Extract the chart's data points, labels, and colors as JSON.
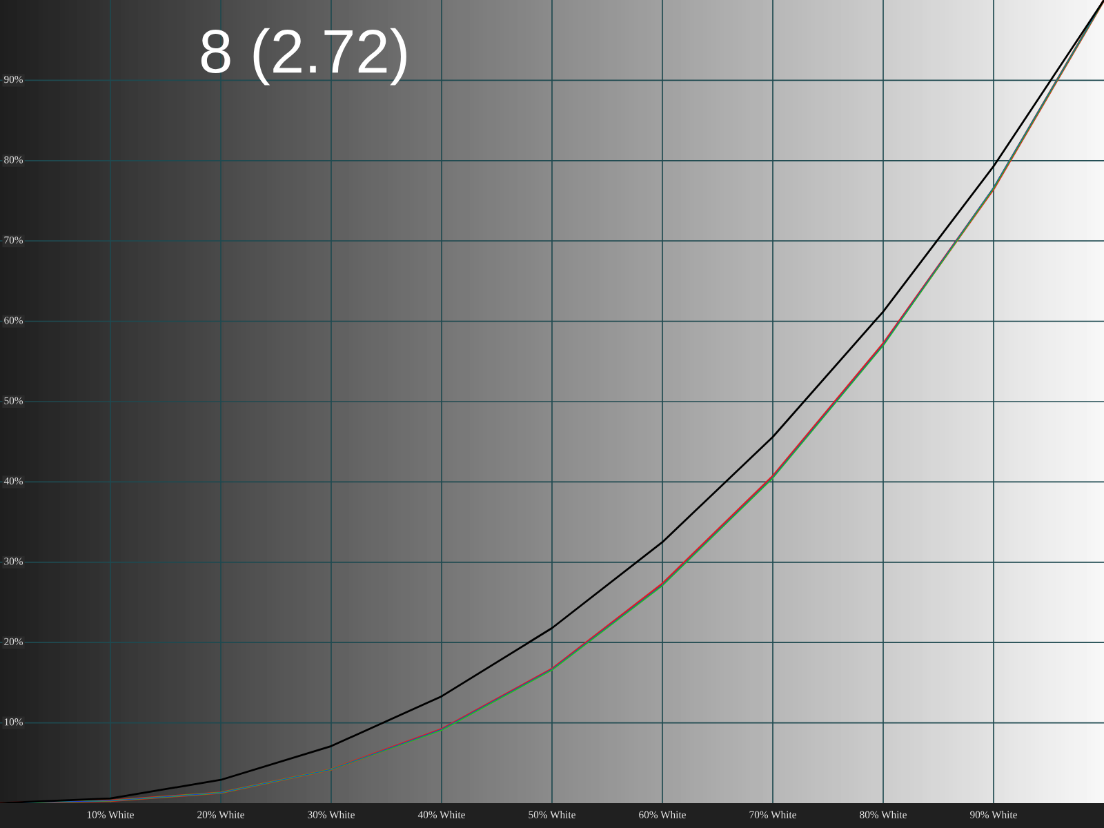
{
  "chart_data": {
    "type": "line",
    "title": "8 (2.72)",
    "x": [
      0,
      10,
      20,
      30,
      40,
      50,
      60,
      70,
      80,
      90,
      100
    ],
    "series": [
      {
        "color": "#000000",
        "values": [
          0,
          0.6,
          2.9,
          7.1,
          13.3,
          21.8,
          32.5,
          45.6,
          61.2,
          79.3,
          100
        ]
      },
      {
        "color": "#e02020",
        "values": [
          0,
          0.3,
          1.3,
          4.2,
          9.2,
          16.7,
          27.3,
          40.7,
          57.2,
          76.5,
          100
        ]
      },
      {
        "color": "#20c020",
        "values": [
          0,
          0.3,
          1.3,
          4.2,
          9.1,
          16.6,
          27.1,
          40.5,
          57.0,
          76.6,
          100
        ]
      },
      {
        "color": "#2030e0",
        "values": [
          0,
          0.3,
          1.3,
          4.2,
          9.2,
          16.7,
          27.2,
          40.6,
          57.1,
          76.7,
          100
        ]
      }
    ],
    "xlim": [
      0,
      100
    ],
    "ylim": [
      0,
      100
    ],
    "xticks": [
      {
        "value": 10,
        "label": "10% White"
      },
      {
        "value": 20,
        "label": "20% White"
      },
      {
        "value": 30,
        "label": "30% White"
      },
      {
        "value": 40,
        "label": "40% White"
      },
      {
        "value": 50,
        "label": "50% White"
      },
      {
        "value": 60,
        "label": "60% White"
      },
      {
        "value": 70,
        "label": "70% White"
      },
      {
        "value": 80,
        "label": "80% White"
      },
      {
        "value": 90,
        "label": "90% White"
      }
    ],
    "yticks": [
      {
        "value": 10,
        "label": "10%"
      },
      {
        "value": 20,
        "label": "20%"
      },
      {
        "value": 30,
        "label": "30%"
      },
      {
        "value": 40,
        "label": "40%"
      },
      {
        "value": 50,
        "label": "50%"
      },
      {
        "value": 60,
        "label": "60%"
      },
      {
        "value": 70,
        "label": "70%"
      },
      {
        "value": 80,
        "label": "80%"
      },
      {
        "value": 90,
        "label": "90%"
      }
    ],
    "grid": true,
    "marker": "none",
    "line_style": "solid"
  }
}
